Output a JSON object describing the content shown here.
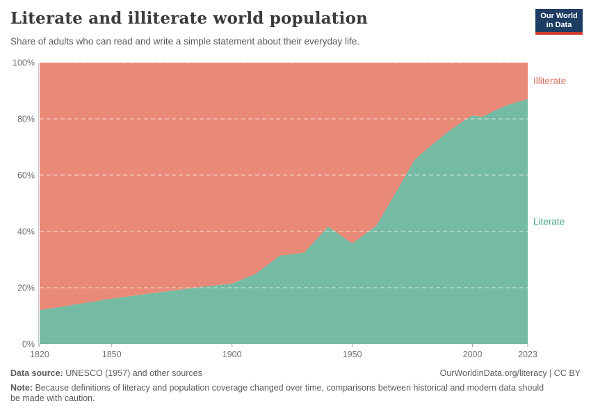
{
  "header": {
    "title": "Literate and illiterate world population",
    "subtitle": "Share of adults who can read and write a simple statement about their everyday life.",
    "logo": {
      "line1": "Our World",
      "line2": "in Data"
    }
  },
  "chart_data": {
    "type": "area",
    "stacked_to_100": true,
    "title": "Literate and illiterate world population",
    "x": [
      1820,
      1850,
      1870,
      1890,
      1900,
      1910,
      1920,
      1930,
      1940,
      1950,
      1960,
      1970,
      1976,
      1980,
      1990,
      1995,
      2000,
      2004,
      2010,
      2015,
      2020,
      2023
    ],
    "series": [
      {
        "name": "Literate",
        "values": [
          12.0,
          16.1,
          18.4,
          20.6,
          21.4,
          25.0,
          31.4,
          32.4,
          41.7,
          35.7,
          42.0,
          56.5,
          65.5,
          68.5,
          75.5,
          78.5,
          81.2,
          80.7,
          83.2,
          85.0,
          86.3,
          87.0
        ]
      },
      {
        "name": "Illiterate",
        "values": [
          88.0,
          83.9,
          81.6,
          79.4,
          78.6,
          75.0,
          68.6,
          67.6,
          58.3,
          64.3,
          58.0,
          43.5,
          34.5,
          31.5,
          24.5,
          21.5,
          18.8,
          19.3,
          16.8,
          15.0,
          13.7,
          13.0
        ]
      }
    ],
    "xlim": [
      1820,
      2023
    ],
    "ylim": [
      0,
      100
    ],
    "x_ticks": [
      1820,
      1850,
      1900,
      1950,
      2000,
      2023
    ],
    "y_ticks": [
      0,
      20,
      40,
      60,
      80,
      100
    ],
    "y_tick_suffix": "%",
    "grid": "dashed-horizontal-over-areas",
    "legend_position": "labels-at-right-edge",
    "xlabel": "",
    "ylabel": ""
  },
  "colors": {
    "literate_fill": "#75BAA3",
    "illiterate_fill": "#E98977",
    "literate_label": "#3FA085",
    "illiterate_label": "#D4705F",
    "axis_text": "#6E6E6E",
    "axis_line": "#C8C8C8",
    "tick_mark": "#A3A3A3",
    "grid_dash": "rgba(255,255,255,0.55)",
    "logo_bg": "#1D3D63",
    "logo_stripe": "#CE3C2C"
  },
  "footer": {
    "data_source_label": "Data source:",
    "data_source": "UNESCO (1957) and other sources",
    "attribution": "OurWorldinData.org/literacy | CC BY",
    "note_label": "Note:",
    "note": "Because definitions of literacy and population coverage changed over time, comparisons between historical and modern data should be made with caution."
  }
}
